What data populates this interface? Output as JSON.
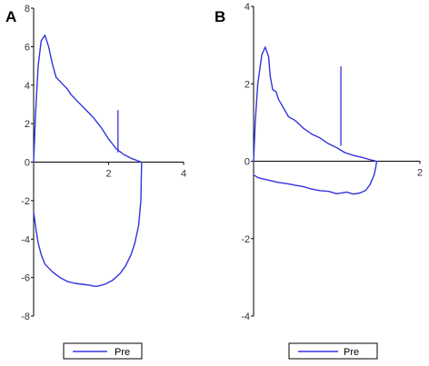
{
  "chart_data": [
    {
      "type": "line",
      "panel_label": "A",
      "xlim": [
        0,
        4
      ],
      "ylim": [
        -8,
        8
      ],
      "x_ticks": [
        {
          "value": 2,
          "label": "2"
        },
        {
          "value": 4,
          "label": "4"
        }
      ],
      "y_ticks": [
        {
          "value": 8,
          "label": "8"
        },
        {
          "value": 6,
          "label": "6"
        },
        {
          "value": 4,
          "label": "4"
        },
        {
          "value": 2,
          "label": "2"
        },
        {
          "value": 0,
          "label": "0"
        },
        {
          "value": -2,
          "label": "-2"
        },
        {
          "value": -4,
          "label": "-4"
        },
        {
          "value": -6,
          "label": "-6"
        },
        {
          "value": -8,
          "label": "-8"
        }
      ],
      "legend": {
        "label": "Pre",
        "position": "bottom"
      },
      "series": [
        {
          "name": "Pre",
          "color": "#3333dd",
          "x": [
            0,
            0.05,
            0.12,
            0.2,
            0.3,
            0.4,
            0.5,
            0.6,
            0.7,
            0.8,
            0.9,
            1.0,
            1.2,
            1.4,
            1.6,
            1.8,
            2.0,
            2.2,
            2.4,
            2.6,
            2.8,
            2.88,
            2.86,
            2.8,
            2.7,
            2.6,
            2.45,
            2.3,
            2.1,
            1.9,
            1.7,
            1.6,
            1.5,
            1.3,
            1.1,
            0.9,
            0.7,
            0.5,
            0.3,
            0.2,
            0.12,
            0.07,
            0.03,
            0
          ],
          "y": [
            0,
            2.5,
            5.0,
            6.3,
            6.6,
            6.0,
            5.1,
            4.4,
            4.2,
            4.0,
            3.8,
            3.5,
            3.1,
            2.7,
            2.3,
            1.8,
            1.2,
            0.7,
            0.4,
            0.2,
            0.05,
            0,
            -2.0,
            -3.3,
            -4.2,
            -4.8,
            -5.4,
            -5.8,
            -6.15,
            -6.35,
            -6.45,
            -6.45,
            -6.4,
            -6.35,
            -6.3,
            -6.2,
            -6.0,
            -5.7,
            -5.3,
            -4.8,
            -4.2,
            -3.6,
            -3.0,
            -2.6
          ]
        }
      ],
      "markers": [
        {
          "x": 2.25,
          "y0": 0.5,
          "y1": 2.7
        }
      ]
    },
    {
      "type": "line",
      "panel_label": "B",
      "xlim": [
        0,
        2
      ],
      "ylim": [
        -4,
        4
      ],
      "x_ticks": [
        {
          "value": 2,
          "label": "2"
        }
      ],
      "y_ticks": [
        {
          "value": 4,
          "label": "4"
        },
        {
          "value": 2,
          "label": "2"
        },
        {
          "value": 0,
          "label": "0"
        },
        {
          "value": -2,
          "label": "-2"
        },
        {
          "value": -4,
          "label": "-4"
        }
      ],
      "legend": {
        "label": "Pre",
        "position": "bottom"
      },
      "series": [
        {
          "name": "Pre",
          "color": "#3333dd",
          "x": [
            0,
            0.02,
            0.05,
            0.1,
            0.14,
            0.18,
            0.2,
            0.23,
            0.27,
            0.3,
            0.34,
            0.38,
            0.42,
            0.5,
            0.6,
            0.7,
            0.8,
            0.9,
            1.0,
            1.1,
            1.2,
            1.3,
            1.4,
            1.48,
            1.47,
            1.45,
            1.4,
            1.35,
            1.28,
            1.2,
            1.12,
            1.0,
            0.9,
            0.8,
            0.7,
            0.6,
            0.5,
            0.4,
            0.3,
            0.2,
            0.1,
            0.05,
            0.02,
            0
          ],
          "y": [
            0,
            1.0,
            2.0,
            2.75,
            2.95,
            2.7,
            2.2,
            1.85,
            1.8,
            1.6,
            1.45,
            1.3,
            1.15,
            1.05,
            0.85,
            0.7,
            0.6,
            0.45,
            0.35,
            0.22,
            0.15,
            0.1,
            0.04,
            0,
            -0.15,
            -0.35,
            -0.6,
            -0.75,
            -0.82,
            -0.85,
            -0.8,
            -0.84,
            -0.78,
            -0.76,
            -0.72,
            -0.66,
            -0.62,
            -0.58,
            -0.55,
            -0.5,
            -0.45,
            -0.42,
            -0.38,
            -0.35
          ]
        }
      ],
      "markers": [
        {
          "x": 1.05,
          "y0": 0.4,
          "y1": 2.45
        }
      ]
    }
  ]
}
